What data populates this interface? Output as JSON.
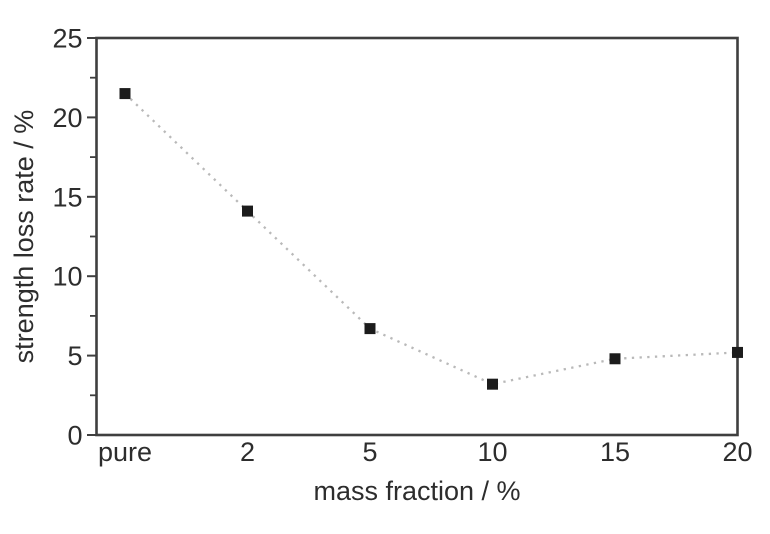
{
  "chart_data": {
    "type": "line",
    "title": "",
    "categories": [
      "pure",
      "2",
      "5",
      "10",
      "15",
      "20"
    ],
    "series": [
      {
        "name": "strength loss rate",
        "values": [
          21.5,
          14.1,
          6.7,
          3.2,
          4.8,
          5.2
        ]
      }
    ],
    "xlabel": "mass fraction / %",
    "ylabel": "strength loss rate / %",
    "ylim": [
      0,
      25
    ],
    "y_major_ticks": [
      0,
      5,
      10,
      15,
      20,
      25
    ],
    "y_minor_ticks": [
      2.5,
      7.5,
      12.5,
      17.5,
      22.5
    ],
    "grid": false,
    "legend_position": "none",
    "line_style": "dotted",
    "marker": "filled-square",
    "colors": {
      "marker": "#1c1c1c",
      "line": "#b9b9b9",
      "axis": "#3f3f3f",
      "text": "#2d2d2d",
      "background": "#ffffff"
    }
  }
}
